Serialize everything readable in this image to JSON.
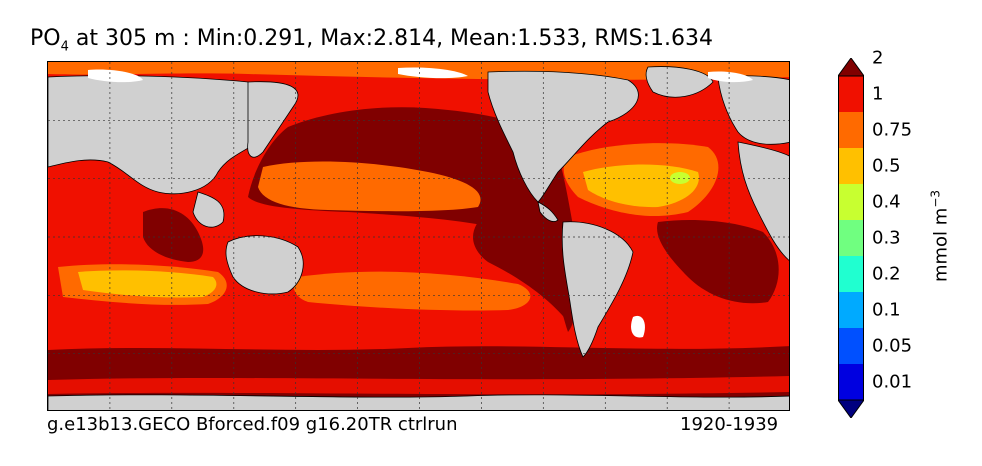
{
  "title": {
    "variable": "PO",
    "variable_sub": "4",
    "rest": " at 305 m : Min:0.291, Max:2.814, Mean:1.533, RMS:1.634"
  },
  "footer": {
    "run_name": "g.e13b13.GECO Bforced.f09 g16.20TR ctrlrun",
    "years": "1920-1939"
  },
  "colorbar": {
    "units_base": "mmol m",
    "units_exp": "−3",
    "levels": [
      "0.01",
      "0.05",
      "0.1",
      "0.2",
      "0.3",
      "0.4",
      "0.5",
      "0.75",
      "1",
      "2"
    ],
    "colors": [
      "#00007f",
      "#0000e0",
      "#0050ff",
      "#00aaff",
      "#20ffd0",
      "#70ff80",
      "#c8ff30",
      "#ffc000",
      "#ff6a00",
      "#f01000",
      "#800000"
    ],
    "extend": "both"
  },
  "map": {
    "projection": "equirectangular (global, Pacific-centered)",
    "land_color": "#d0d0d0",
    "gridlines": "dotted",
    "contour_lines": true
  }
}
